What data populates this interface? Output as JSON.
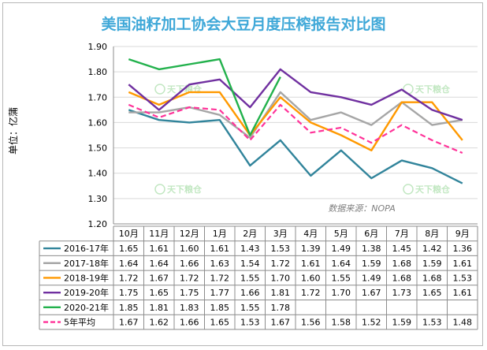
{
  "chart_data": {
    "type": "line",
    "title": "美国油籽加工协会大豆月度压榨报告对比图",
    "ylabel": "单位：亿蒲",
    "source": "数据来源：NOPA",
    "watermark": "天下粮仓",
    "ylim": [
      1.2,
      1.9
    ],
    "yticks": [
      "1.20",
      "1.30",
      "1.40",
      "1.50",
      "1.60",
      "1.70",
      "1.80",
      "1.90"
    ],
    "grid": true,
    "categories": [
      "10月",
      "11月",
      "12月",
      "1月",
      "2月",
      "3月",
      "4月",
      "5月",
      "6月",
      "7月",
      "8月",
      "9月"
    ],
    "series": [
      {
        "name": "2016-17年",
        "color": "#31849b",
        "dash": false,
        "values": [
          1.65,
          1.61,
          1.6,
          1.61,
          1.43,
          1.53,
          1.39,
          1.49,
          1.38,
          1.45,
          1.42,
          1.36
        ]
      },
      {
        "name": "2017-18年",
        "color": "#a6a6a6",
        "dash": false,
        "values": [
          1.64,
          1.64,
          1.66,
          1.63,
          1.54,
          1.72,
          1.61,
          1.64,
          1.59,
          1.68,
          1.59,
          1.61
        ]
      },
      {
        "name": "2018-19年",
        "color": "#ff9900",
        "dash": false,
        "values": [
          1.72,
          1.67,
          1.72,
          1.72,
          1.55,
          1.7,
          1.6,
          1.55,
          1.49,
          1.68,
          1.68,
          1.53
        ]
      },
      {
        "name": "2019-20年",
        "color": "#7030a0",
        "dash": false,
        "values": [
          1.75,
          1.65,
          1.75,
          1.77,
          1.66,
          1.81,
          1.72,
          1.7,
          1.67,
          1.73,
          1.65,
          1.61
        ]
      },
      {
        "name": "2020-21年",
        "color": "#22b14c",
        "dash": false,
        "values": [
          1.85,
          1.81,
          1.83,
          1.85,
          1.55,
          1.78,
          null,
          null,
          null,
          null,
          null,
          null
        ]
      },
      {
        "name": "5年平均",
        "color": "#ff3399",
        "dash": true,
        "values": [
          1.67,
          1.62,
          1.66,
          1.65,
          1.53,
          1.67,
          1.56,
          1.58,
          1.52,
          1.59,
          1.53,
          1.48
        ]
      }
    ]
  }
}
